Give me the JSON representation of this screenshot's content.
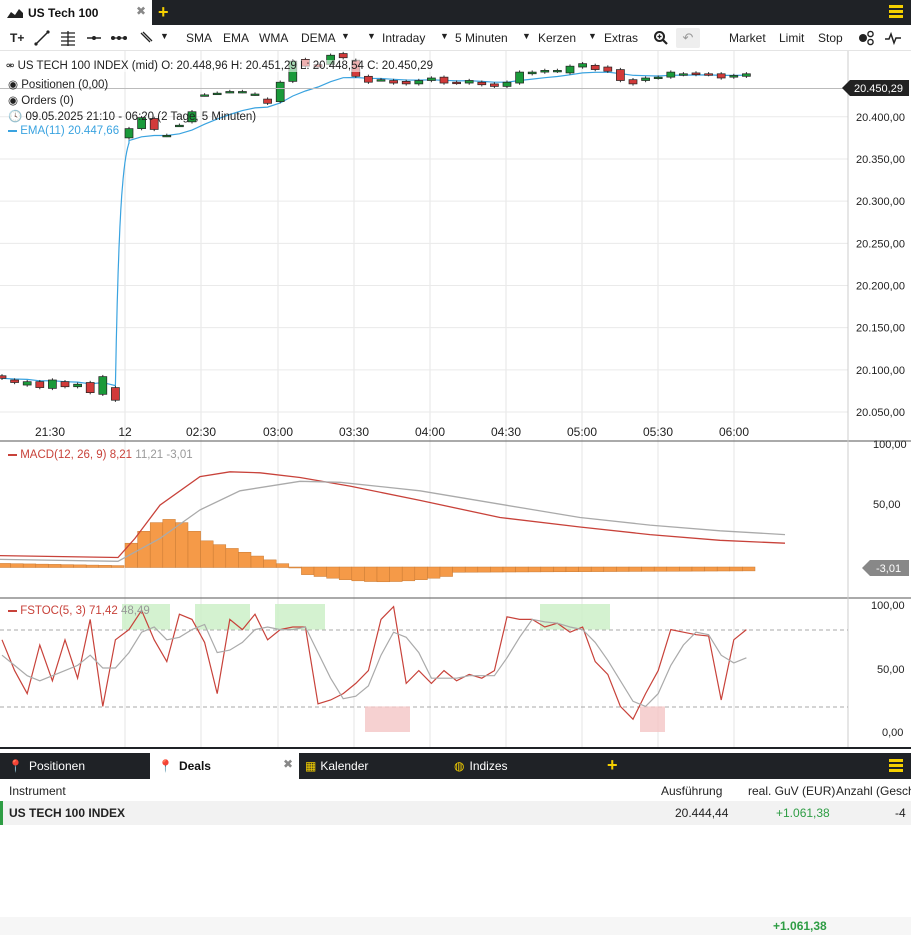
{
  "top_tabs": [
    {
      "label": "US Tech 100",
      "active": true
    }
  ],
  "toolbar": {
    "left_tools": [
      "T+",
      "line-tool",
      "fib-tool",
      "hline-tool",
      "dots-tool",
      "brush-tool"
    ],
    "indicators": [
      "SMA",
      "EMA",
      "WMA",
      "DEMA"
    ],
    "period_type": "Intraday",
    "interval": "5 Minuten",
    "chart_type": "Kerzen",
    "extras": "Extras",
    "orders": [
      "Market",
      "Limit",
      "Stop"
    ]
  },
  "info": {
    "instrument_line": "US TECH 100 INDEX (mid)",
    "o": "O: 20.448,96",
    "h": "H: 20.451,29",
    "l": "L: 20.448,54",
    "c": "C: 20.450,29",
    "positionen": "Positionen (0,00)",
    "orders": "Orders (0)",
    "range": "09.05.2025 21:10 - 06:20",
    "range_detail": "(2 Tage, 5 Minuten)",
    "ema_label": "EMA(11)",
    "ema_value": "20.447,66",
    "current_price": "20.450,29"
  },
  "price_axis": [
    "20.400,00",
    "20.350,00",
    "20.300,00",
    "20.250,00",
    "20.200,00",
    "20.150,00",
    "20.100,00",
    "20.050,00"
  ],
  "time_axis": [
    "21:30",
    "12",
    "02:30",
    "03:00",
    "03:30",
    "04:00",
    "04:30",
    "05:00",
    "05:30",
    "06:00"
  ],
  "macd": {
    "label": "MACD(12, 26, 9)",
    "v1": "8,21",
    "v2": "11,21",
    "v3": "-3,01",
    "axis": [
      "100,00",
      "50,00"
    ],
    "current": "-3,01"
  },
  "fstoc": {
    "label": "FSTOC(5, 3)",
    "v1": "71,42",
    "v2": "48,49",
    "axis": [
      "100,00",
      "50,00",
      "0,00"
    ]
  },
  "bottom_tabs": [
    "Positionen",
    "Deals",
    "Kalender",
    "Indizes"
  ],
  "table": {
    "headers": [
      "Instrument",
      "Ausführung",
      "real. GuV (EUR)",
      "Anzahl (Geschlossen)"
    ],
    "row": {
      "instrument": "US TECH 100 INDEX",
      "ausfuehrung": "20.444,44",
      "guv": "+1.061,38",
      "anzahl": "-4"
    },
    "total": "+1.061,38"
  },
  "colors": {
    "up": "#1a9a3a",
    "down": "#d23a3a",
    "ema": "#3aa3e0",
    "macd_hist": "#f59a48",
    "accent": "#f5d000"
  },
  "chart_data": {
    "type": "candlestick",
    "interval": "5 Minuten",
    "candles": [
      {
        "o": 20093,
        "c": 20090
      },
      {
        "o": 20088,
        "c": 20085
      },
      {
        "o": 20082,
        "c": 20086
      },
      {
        "o": 20086,
        "c": 20079
      },
      {
        "o": 20078,
        "c": 20088
      },
      {
        "o": 20086,
        "c": 20080
      },
      {
        "o": 20080,
        "c": 20083
      },
      {
        "o": 20085,
        "c": 20073
      },
      {
        "o": 20071,
        "c": 20092
      },
      {
        "o": 20079,
        "c": 20064
      },
      {
        "o": 20375,
        "c": 20386
      },
      {
        "o": 20386,
        "c": 20399
      },
      {
        "o": 20398,
        "c": 20385
      },
      {
        "o": 20378,
        "c": 20378
      },
      {
        "o": 20390,
        "c": 20390
      },
      {
        "o": 20394,
        "c": 20406
      },
      {
        "o": 20426,
        "c": 20426
      },
      {
        "o": 20428,
        "c": 20428
      },
      {
        "o": 20430,
        "c": 20430
      },
      {
        "o": 20430,
        "c": 20430
      },
      {
        "o": 20427,
        "c": 20427
      },
      {
        "o": 20421,
        "c": 20416
      },
      {
        "o": 20418,
        "c": 20441
      },
      {
        "o": 20442,
        "c": 20466
      },
      {
        "o": 20468,
        "c": 20460
      },
      {
        "o": 20462,
        "c": 20459
      },
      {
        "o": 20462,
        "c": 20473
      },
      {
        "o": 20475,
        "c": 20470
      },
      {
        "o": 20467,
        "c": 20448
      },
      {
        "o": 20448,
        "c": 20441
      },
      {
        "o": 20444,
        "c": 20444
      },
      {
        "o": 20443,
        "c": 20440
      },
      {
        "o": 20442,
        "c": 20439
      },
      {
        "o": 20439,
        "c": 20443
      },
      {
        "o": 20443,
        "c": 20446
      },
      {
        "o": 20447,
        "c": 20440
      },
      {
        "o": 20441,
        "c": 20440
      },
      {
        "o": 20440,
        "c": 20443
      },
      {
        "o": 20441,
        "c": 20438
      },
      {
        "o": 20439,
        "c": 20436
      },
      {
        "o": 20436,
        "c": 20441
      },
      {
        "o": 20440,
        "c": 20453
      },
      {
        "o": 20451,
        "c": 20453
      },
      {
        "o": 20453,
        "c": 20455
      },
      {
        "o": 20454,
        "c": 20455
      },
      {
        "o": 20452,
        "c": 20460
      },
      {
        "o": 20459,
        "c": 20463
      },
      {
        "o": 20461,
        "c": 20456
      },
      {
        "o": 20459,
        "c": 20454
      },
      {
        "o": 20456,
        "c": 20443
      },
      {
        "o": 20444,
        "c": 20439
      },
      {
        "o": 20443,
        "c": 20446
      },
      {
        "o": 20446,
        "c": 20447
      },
      {
        "o": 20447,
        "c": 20453
      },
      {
        "o": 20450,
        "c": 20451
      },
      {
        "o": 20452,
        "c": 20450
      },
      {
        "o": 20451,
        "c": 20450
      },
      {
        "o": 20451,
        "c": 20446
      },
      {
        "o": 20447,
        "c": 20449
      },
      {
        "o": 20448,
        "c": 20451
      }
    ],
    "y_range": [
      20037,
      20478
    ]
  }
}
